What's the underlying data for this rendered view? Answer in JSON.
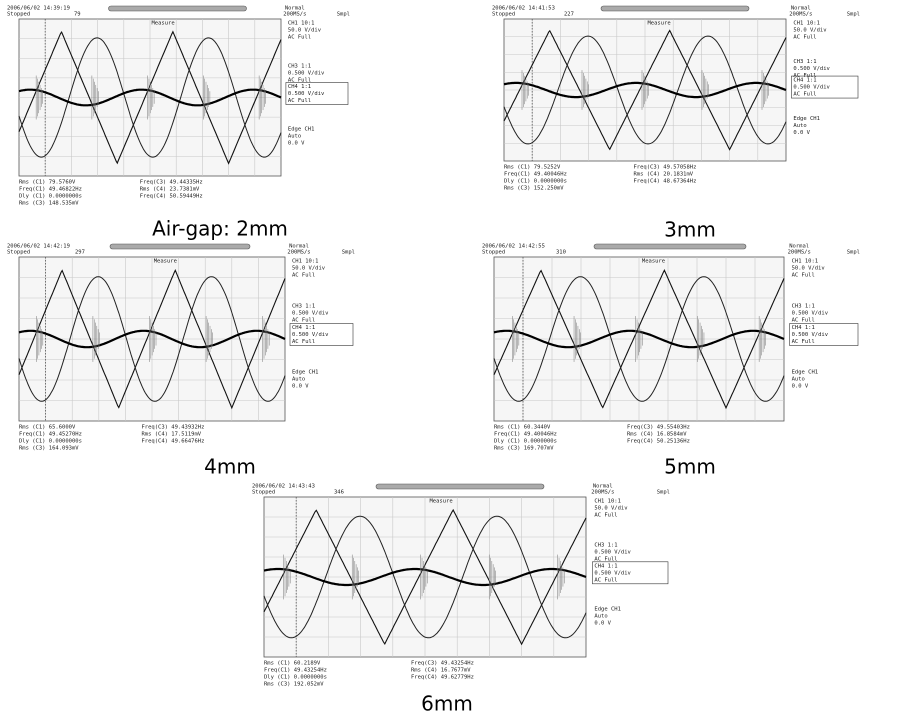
{
  "panels": [
    {
      "caption": "Air-gap: 2mm",
      "header": {
        "datetime": "2006/06/02 14:39:19",
        "status": "Stopped",
        "count": "79",
        "mode": "Normal",
        "rate": "200MS/s",
        "acq": "Smpl"
      },
      "measure_label": "Measure",
      "channels": [
        [
          "CH1 10:1",
          "50.0 V/div",
          "AC  Full"
        ],
        [
          "CH3 1:1",
          "0.500 V/div",
          "AC  Full"
        ],
        [
          "CH4 1:1",
          "0.500 V/div",
          "AC  Full"
        ]
      ],
      "trigger": [
        "Edge CH1",
        "Auto",
        "0.0 V"
      ],
      "measurements": [
        [
          "Rms (C1)   79.5760V",
          "Freq(C3)   49.44335Hz"
        ],
        [
          "Freq(C1)   49.46822Hz",
          "Rms (C4)   23.7381mV"
        ],
        [
          "Dly (C1)   0.0000000s",
          "Freq(C4)   50.59449Hz"
        ],
        [
          "Rms (C3)   148.535mV"
        ]
      ]
    },
    {
      "caption": "3mm",
      "header": {
        "datetime": "2006/06/02 14:41:53",
        "status": "Stopped",
        "count": "227",
        "mode": "Normal",
        "rate": "200MS/s",
        "acq": "Smpl"
      },
      "measure_label": "Measure",
      "channels": [
        [
          "CH1 10:1",
          "50.0 V/div",
          "AC  Full"
        ],
        [
          "CH3 1:1",
          "0.500 V/div",
          "AC  Full"
        ],
        [
          "CH4 1:1",
          "0.500 V/div",
          "AC  Full"
        ]
      ],
      "trigger": [
        "Edge CH1",
        "Auto",
        "0.0 V"
      ],
      "measurements": [
        [
          "Rms (C1)   79.5252V",
          "Freq(C3)   49.57058Hz"
        ],
        [
          "Freq(C1)   49.40046Hz",
          "Rms (C4)   20.1831mV"
        ],
        [
          "Dly (C1)   0.0000000s",
          "Freq(C4)   48.67364Hz"
        ],
        [
          "Rms (C3)   152.250mV"
        ]
      ]
    },
    {
      "caption": "4mm",
      "header": {
        "datetime": "2006/06/02 14:42:19",
        "status": "Stopped",
        "count": "297",
        "mode": "Normal",
        "rate": "200MS/s",
        "acq": "Smpl"
      },
      "measure_label": "Measure",
      "channels": [
        [
          "CH1 10:1",
          "50.0 V/div",
          "AC  Full"
        ],
        [
          "CH3 1:1",
          "0.500 V/div",
          "AC  Full"
        ],
        [
          "CH4 1:1",
          "0.500 V/div",
          "AC  Full"
        ]
      ],
      "trigger": [
        "Edge CH1",
        "Auto",
        "0.0 V"
      ],
      "measurements": [
        [
          "Rms (C1)   65.6000V",
          "Freq(C3)   49.43932Hz"
        ],
        [
          "Freq(C1)   49.45270Hz",
          "Rms (C4)   17.5119mV"
        ],
        [
          "Dly (C1)   0.0000000s",
          "Freq(C4)   49.66476Hz"
        ],
        [
          "Rms (C3)   164.093mV"
        ]
      ]
    },
    {
      "caption": "5mm",
      "header": {
        "datetime": "2006/06/02 14:42:55",
        "status": "Stopped",
        "count": "310",
        "mode": "Normal",
        "rate": "200MS/s",
        "acq": "Smpl"
      },
      "measure_label": "Measure",
      "channels": [
        [
          "CH1 10:1",
          "50.0 V/div",
          "AC  Full"
        ],
        [
          "CH3 1:1",
          "0.500 V/div",
          "AC  Full"
        ],
        [
          "CH4 1:1",
          "0.500 V/div",
          "AC  Full"
        ]
      ],
      "trigger": [
        "Edge CH1",
        "Auto",
        "0.0 V"
      ],
      "measurements": [
        [
          "Rms (C1)   60.3440V",
          "Freq(C3)   49.55403Hz"
        ],
        [
          "Freq(C1)   49.40046Hz",
          "Rms (C4)   16.8584mV"
        ],
        [
          "Dly (C1)   0.0000000s",
          "Freq(C4)   50.25136Hz"
        ],
        [
          "Rms (C3)   169.707mV"
        ]
      ]
    },
    {
      "caption": "6mm",
      "header": {
        "datetime": "2006/06/02 14:43:43",
        "status": "Stopped",
        "count": "346",
        "mode": "Normal",
        "rate": "200MS/s",
        "acq": "Smpl"
      },
      "measure_label": "Measure",
      "channels": [
        [
          "CH1 10:1",
          "50.0 V/div",
          "AC  Full"
        ],
        [
          "CH3 1:1",
          "0.500 V/div",
          "AC  Full"
        ],
        [
          "CH4 1:1",
          "0.500 V/div",
          "AC  Full"
        ]
      ],
      "trigger": [
        "Edge CH1",
        "Auto",
        "0.0 V"
      ],
      "measurements": [
        [
          "Rms (C1)   60.2189V",
          "Freq(C3)   49.43254Hz"
        ],
        [
          "Freq(C1)   49.43254Hz",
          "Rms (C4)   16.7677mV"
        ],
        [
          "Dly (C1)   0.0000000s",
          "Freq(C4)   49.62779Hz"
        ],
        [
          "Rms (C3)   192.052mV"
        ]
      ]
    }
  ]
}
